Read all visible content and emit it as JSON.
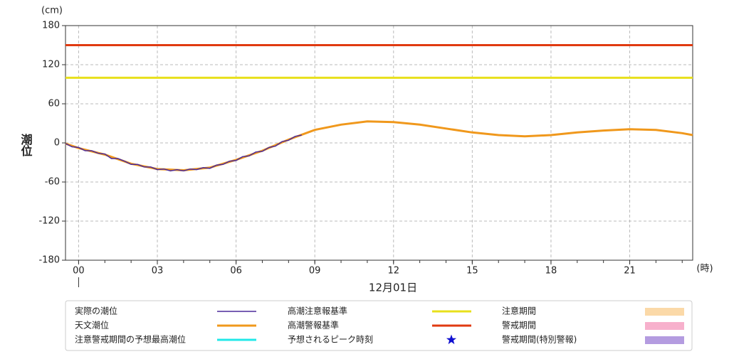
{
  "chart_data": {
    "type": "line",
    "yunit": "(cm)",
    "ylabel": "潮位",
    "xunit": "(時)",
    "xlabel": "12月01日",
    "xlim": [
      -0.5,
      23.4
    ],
    "xticks": [
      {
        "value": 0,
        "label": "00"
      },
      {
        "value": 3,
        "label": "03"
      },
      {
        "value": 6,
        "label": "06"
      },
      {
        "value": 9,
        "label": "09"
      },
      12,
      15,
      18,
      21
    ],
    "xminor_step": 1,
    "ylim": [
      -180,
      180
    ],
    "yticks": [
      180,
      120,
      60,
      0,
      -60,
      -120,
      -180
    ],
    "grid": true,
    "series": [
      {
        "name": "実際の潮位",
        "color": "#4b2a9a",
        "x": [
          -0.5,
          -0.25,
          0,
          0.25,
          0.5,
          0.75,
          1,
          1.25,
          1.5,
          1.75,
          2,
          2.25,
          2.5,
          2.75,
          3,
          3.25,
          3.5,
          3.75,
          4,
          4.25,
          4.5,
          4.75,
          5,
          5.25,
          5.5,
          5.75,
          6,
          6.25,
          6.5,
          6.75,
          7,
          7.25,
          7.5,
          7.75,
          8,
          8.25,
          8.5
        ],
        "values": [
          -1,
          -6,
          -7,
          -12,
          -12,
          -16,
          -17,
          -24,
          -24,
          -28,
          -33,
          -33,
          -37,
          -37,
          -41,
          -40,
          -43,
          -41,
          -43,
          -40,
          -41,
          -38,
          -39,
          -34,
          -33,
          -28,
          -27,
          -21,
          -20,
          -14,
          -13,
          -7,
          -5,
          2,
          4,
          10,
          12
        ]
      },
      {
        "name": "天文潮位",
        "color": "#f0981c",
        "x": [
          -0.5,
          0,
          1,
          2,
          3,
          4,
          5,
          6,
          7,
          8,
          9,
          10,
          11,
          12,
          13,
          14,
          15,
          16,
          17,
          18,
          19,
          20,
          21,
          22,
          23,
          23.4
        ],
        "values": [
          -1,
          -8,
          -18,
          -32,
          -40,
          -42,
          -38,
          -26,
          -12,
          5,
          20,
          28,
          33,
          32,
          28,
          22,
          16,
          12,
          10,
          12,
          16,
          19,
          21,
          20,
          15,
          12
        ]
      }
    ],
    "thresholds": [
      {
        "name": "高潮注意報基準",
        "color": "#e8e01c",
        "value": 100
      },
      {
        "name": "高潮警報基準",
        "color": "#e03a10",
        "value": 150
      }
    ],
    "legend_extra": [
      {
        "name": "注意警戒期間の予想最高潮位",
        "color": "#22e8e8",
        "symbol": "line"
      },
      {
        "name": "予想されるピーク時刻",
        "color": "#1010d0",
        "symbol": "star"
      },
      {
        "name": "注意期間",
        "color": "#fbd9a8",
        "symbol": "rect"
      },
      {
        "name": "警戒期間",
        "color": "#f7b0cc",
        "symbol": "rect"
      },
      {
        "name": "警戒期間(特別警報)",
        "color": "#b49ce0",
        "symbol": "rect"
      }
    ]
  }
}
